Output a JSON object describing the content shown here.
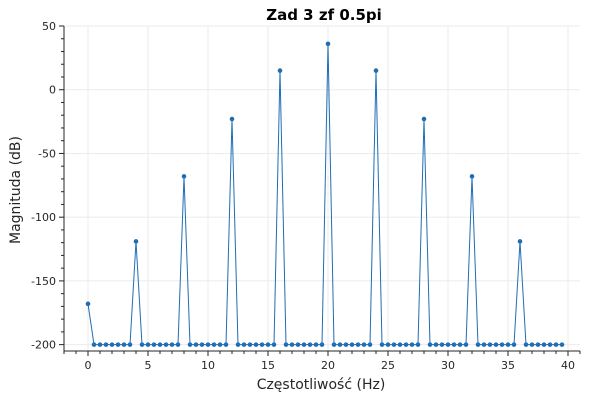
{
  "chart_data": {
    "type": "line",
    "title": "Zad 3 zf 0.5pi",
    "xlabel": "Częstotliwość (Hz)",
    "ylabel": "Magnituda (dB)",
    "xlim": [
      -2,
      41
    ],
    "ylim": [
      -205,
      50
    ],
    "xticks": [
      0,
      5,
      10,
      15,
      20,
      25,
      30,
      35,
      40
    ],
    "yticks": [
      50,
      0,
      -50,
      -100,
      -150,
      -200
    ],
    "grid": true,
    "color": "#1f6eb4",
    "series": [
      {
        "x": [
          0,
          0.5,
          1,
          1.5,
          2,
          2.5,
          3,
          3.5,
          4,
          4.5,
          5,
          5.5,
          6,
          6.5,
          7,
          7.5,
          8,
          8.5,
          9,
          9.5,
          10,
          10.5,
          11,
          11.5,
          12,
          12.5,
          13,
          13.5,
          14,
          14.5,
          15,
          15.5,
          16,
          16.5,
          17,
          17.5,
          18,
          18.5,
          19,
          19.5,
          20,
          20.5,
          21,
          21.5,
          22,
          22.5,
          23,
          23.5,
          24,
          24.5,
          25,
          25.5,
          26,
          26.5,
          27,
          27.5,
          28,
          28.5,
          29,
          29.5,
          30,
          30.5,
          31,
          31.5,
          32,
          32.5,
          33,
          33.5,
          34,
          34.5,
          35,
          35.5,
          36,
          36.5,
          37,
          37.5,
          38,
          38.5,
          39,
          39.5
        ],
        "y": [
          -168,
          -200,
          -200,
          -200,
          -200,
          -200,
          -200,
          -200,
          -119,
          -200,
          -200,
          -200,
          -200,
          -200,
          -200,
          -200,
          -68,
          -200,
          -200,
          -200,
          -200,
          -200,
          -200,
          -200,
          -23,
          -200,
          -200,
          -200,
          -200,
          -200,
          -200,
          -200,
          15,
          -200,
          -200,
          -200,
          -200,
          -200,
          -200,
          -200,
          36,
          -200,
          -200,
          -200,
          -200,
          -200,
          -200,
          -200,
          15,
          -200,
          -200,
          -200,
          -200,
          -200,
          -200,
          -200,
          -23,
          -200,
          -200,
          -200,
          -200,
          -200,
          -200,
          -200,
          -68,
          -200,
          -200,
          -200,
          -200,
          -200,
          -200,
          -200,
          -119,
          -200,
          -200,
          -200,
          -200,
          -200,
          -200,
          -200
        ]
      }
    ]
  }
}
